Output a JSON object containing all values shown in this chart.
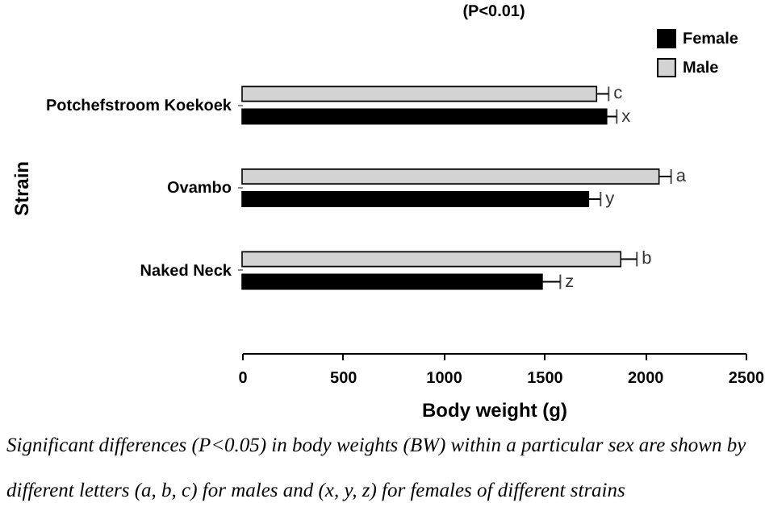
{
  "chart_data": {
    "type": "bar",
    "orientation": "horizontal",
    "title": "(P<0.01)",
    "xlabel": "Body weight (g)",
    "ylabel": "Strain",
    "categories": [
      "Potchefstroom Koekoek",
      "Ovambo",
      "Naked Neck"
    ],
    "series": [
      {
        "name": "Female",
        "color": "#000000",
        "values": [
          1810,
          1720,
          1490
        ],
        "errors": [
          [
            1810,
            1860
          ],
          [
            1720,
            1780
          ],
          [
            1490,
            1580
          ]
        ],
        "value_labels": [
          "x",
          "y",
          "z"
        ]
      },
      {
        "name": "Male",
        "color": "#d3d3d3",
        "values": [
          1760,
          2070,
          1880
        ],
        "errors": [
          [
            1760,
            1820
          ],
          [
            2070,
            2130
          ],
          [
            1880,
            1960
          ]
        ],
        "value_labels": [
          "c",
          "a",
          "b"
        ]
      }
    ],
    "xlim": [
      0,
      2500
    ],
    "xticks": [
      0,
      500,
      1000,
      1500,
      2000,
      2500
    ],
    "grid": false,
    "legend": "top right",
    "annotations": [
      "Significant differences (P<0.05) in body weights (BW) within a particular sex are shown by different letters (a, b, c) for males and (x, y, z) for females of different strains"
    ]
  }
}
